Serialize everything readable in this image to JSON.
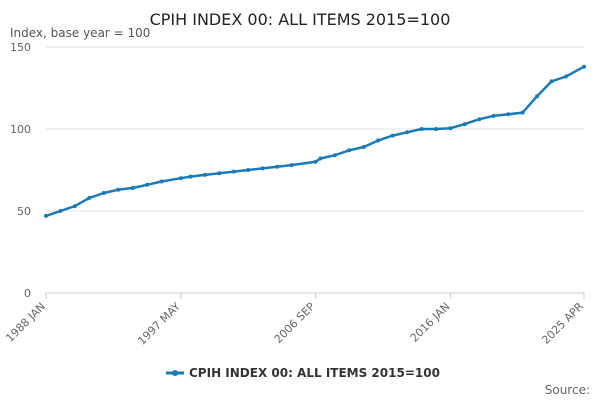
{
  "chart_data": {
    "type": "line",
    "title": "CPIH INDEX 00: ALL ITEMS 2015=100",
    "ylabel": "Index, base year = 100",
    "xlabel": "",
    "ylim": [
      0,
      150
    ],
    "y_ticks": [
      0,
      50,
      100,
      150
    ],
    "x_ticks": [
      {
        "label": "1988 JAN",
        "t": 1988.0
      },
      {
        "label": "1997 MAY",
        "t": 1997.333
      },
      {
        "label": "2006 SEP",
        "t": 2006.667
      },
      {
        "label": "2016 JAN",
        "t": 2016.0
      },
      {
        "label": "2025 APR",
        "t": 2025.25
      }
    ],
    "x_range": [
      1988.0,
      2025.25
    ],
    "grid": true,
    "legend_position": "bottom",
    "series": [
      {
        "name": "CPIH INDEX 00: ALL ITEMS 2015=100",
        "color": "#1a7ab8",
        "x": [
          1988.0,
          1989.0,
          1990.0,
          1991.0,
          1992.0,
          1993.0,
          1994.0,
          1995.0,
          1996.0,
          1997.333,
          1998.0,
          1999.0,
          2000.0,
          2001.0,
          2002.0,
          2003.0,
          2004.0,
          2005.0,
          2006.667,
          2007.0,
          2008.0,
          2009.0,
          2010.0,
          2011.0,
          2012.0,
          2013.0,
          2014.0,
          2015.0,
          2016.0,
          2017.0,
          2018.0,
          2019.0,
          2020.0,
          2021.0,
          2022.0,
          2023.0,
          2024.0,
          2025.25
        ],
        "values": [
          47,
          50,
          53,
          58,
          61,
          63,
          64,
          66,
          68,
          70,
          71,
          72,
          73,
          74,
          75,
          76,
          77,
          78,
          80,
          82,
          84,
          87,
          89,
          93,
          96,
          98,
          100,
          100,
          100.5,
          103,
          106,
          108,
          109,
          110,
          120,
          129,
          132,
          138
        ]
      }
    ]
  },
  "source_label": "Source:"
}
